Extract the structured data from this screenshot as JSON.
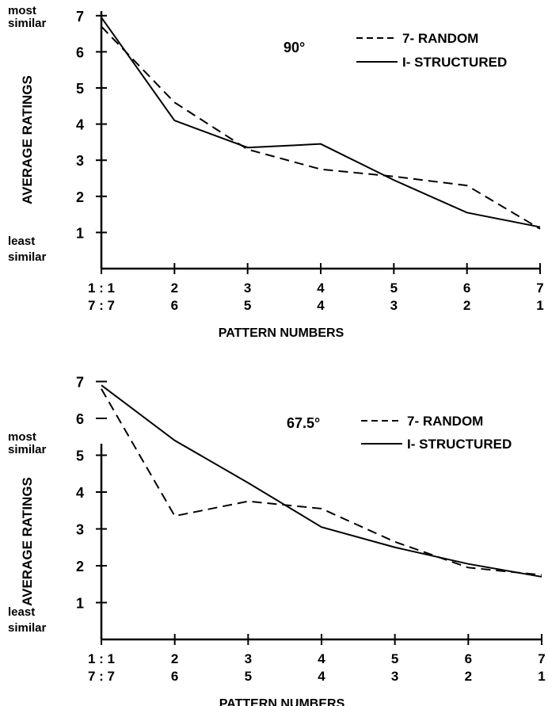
{
  "chart_data": [
    {
      "type": "line",
      "annotation": "90°",
      "ylabel": "AVERAGE   RATINGS",
      "xlabel": "PATTERN   NUMBERS",
      "y_top_label": [
        "most",
        "similar"
      ],
      "y_bottom_label": [
        "least",
        "similar"
      ],
      "yticks": [
        "1",
        "2",
        "3",
        "4",
        "5",
        "6",
        "7"
      ],
      "ylim": [
        0,
        7
      ],
      "xlim": [
        1,
        7
      ],
      "x_tick_row1": [
        "1 : 1",
        "2",
        "3",
        "4",
        "5",
        "6",
        "7"
      ],
      "x_tick_row2": [
        "7 : 7",
        "6",
        "5",
        "4",
        "3",
        "2",
        "1"
      ],
      "x": [
        1,
        2,
        3,
        4,
        5,
        6,
        7
      ],
      "series": [
        {
          "name": "7- RANDOM",
          "style": "dashed",
          "values": [
            6.7,
            4.6,
            3.3,
            2.75,
            2.55,
            2.3,
            1.1
          ]
        },
        {
          "name": "I- STRUCTURED",
          "style": "solid",
          "values": [
            6.95,
            4.1,
            3.35,
            3.45,
            2.45,
            1.55,
            1.15
          ]
        }
      ]
    },
    {
      "type": "line",
      "annotation": "67.5°",
      "ylabel": "AVERAGE   RATINGS",
      "xlabel": "PATTERN   NUMBERS",
      "y_top_label": [
        "most",
        "similar"
      ],
      "y_bottom_label": [
        "least",
        "similar"
      ],
      "yticks": [
        "1",
        "2",
        "3",
        "4",
        "5",
        "6",
        "7"
      ],
      "ylim": [
        0,
        7
      ],
      "xlim": [
        1,
        7
      ],
      "x_tick_row1": [
        "1 : 1",
        "2",
        "3",
        "4",
        "5",
        "6",
        "7"
      ],
      "x_tick_row2": [
        "7 : 7",
        "6",
        "5",
        "4",
        "3",
        "2",
        "1"
      ],
      "x": [
        1,
        2,
        3,
        4,
        5,
        6,
        7
      ],
      "series": [
        {
          "name": "7- RANDOM",
          "style": "dashed",
          "values": [
            6.8,
            3.35,
            3.75,
            3.55,
            2.65,
            1.95,
            1.75
          ]
        },
        {
          "name": "I- STRUCTURED",
          "style": "solid",
          "values": [
            6.9,
            5.4,
            4.25,
            3.05,
            2.5,
            2.05,
            1.7
          ]
        }
      ]
    }
  ]
}
